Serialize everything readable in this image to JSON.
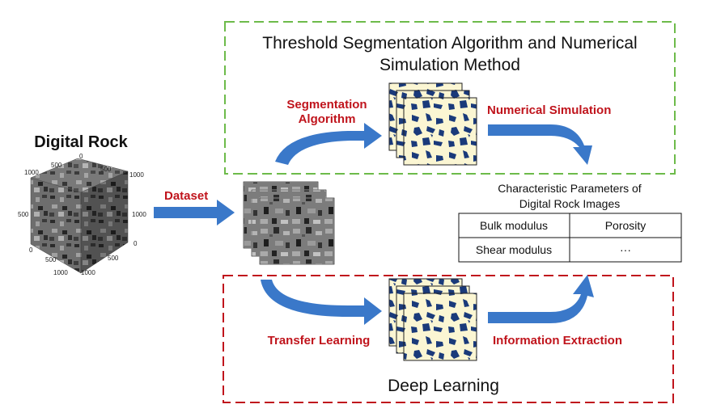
{
  "top_box": {
    "title_line1": "Threshold Segmentation Algorithm and Numerical",
    "title_line2": "Simulation Method",
    "border_color": "#6dbb4a"
  },
  "bottom_box": {
    "title": "Deep Learning",
    "border_color": "#c0141c"
  },
  "digital_rock": {
    "title": "Digital Rock",
    "axis_labels": [
      "1000",
      "500",
      "0",
      "500",
      "1000",
      "500",
      "0",
      "500",
      "1000",
      "0",
      "500",
      "1000",
      "1000"
    ]
  },
  "labels": {
    "dataset": "Dataset",
    "segmentation_line1": "Segmentation",
    "segmentation_line2": "Algorithm",
    "numerical_simulation": "Numerical Simulation",
    "transfer_learning": "Transfer Learning",
    "information_extraction": "Information Extraction"
  },
  "params": {
    "title_line1": "Characteristic Parameters of",
    "title_line2": "Digital Rock Images",
    "rows": [
      [
        "Bulk modulus",
        "Porosity"
      ],
      [
        "Shear modulus",
        "···"
      ]
    ]
  },
  "colors": {
    "arrow": "#3a78c9",
    "label_red": "#c0141c",
    "segmented_bg": "#fbf6d3",
    "segmented_pore": "#1a3a7a",
    "gray_bg": "#7f7f7f"
  }
}
